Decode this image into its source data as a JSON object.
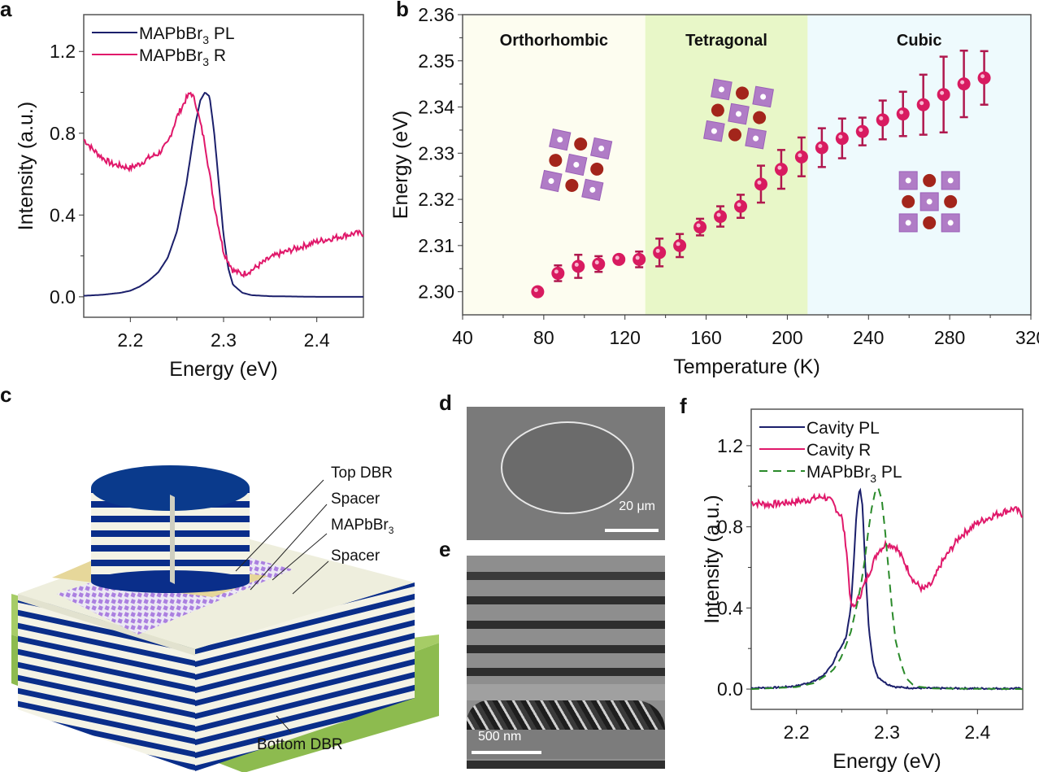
{
  "panels": {
    "a": {
      "label": "a"
    },
    "b": {
      "label": "b"
    },
    "c": {
      "label": "c"
    },
    "d": {
      "label": "d"
    },
    "e": {
      "label": "e"
    },
    "f": {
      "label": "f"
    }
  },
  "colors": {
    "navy": "#1b1f6b",
    "magenta": "#e0186a",
    "green_dash": "#2a8a2a",
    "ortho_bg": "#fdfdf0",
    "tetra_bg": "#e8f7c8",
    "cubic_bg": "#eefafd",
    "dbr_blue": "#0a2e8a",
    "point": "#d81b60"
  },
  "diagram_c": {
    "labels": [
      "Top DBR",
      "Spacer",
      "MAPbBr3",
      "Spacer",
      "Bottom DBR"
    ],
    "label_main": [
      "Top DBR",
      "Spacer",
      "MAPbBr",
      "Spacer",
      "Bottom DBR"
    ],
    "label_sub": [
      "",
      "",
      "3",
      "",
      ""
    ]
  },
  "image_d": {
    "scale_bar": "20 μm"
  },
  "image_e": {
    "scale_bar": "500 nm"
  },
  "chart_data": [
    {
      "id": "a",
      "type": "line",
      "title": "",
      "xlabel": "Energy (eV)",
      "ylabel": "Intensity (a.u.)",
      "xlim": [
        2.15,
        2.45
      ],
      "ylim": [
        -0.1,
        1.38
      ],
      "xticks": [
        2.2,
        2.3,
        2.4
      ],
      "xtick_labels": [
        "2.2",
        "2.3",
        "2.4"
      ],
      "yticks": [
        0.0,
        0.4,
        0.8,
        1.2
      ],
      "ytick_labels": [
        "0.0",
        "0.4",
        "0.8",
        "1.2"
      ],
      "legend": "top-left",
      "series": [
        {
          "name": "MAPbBr3 PL",
          "legend_main": "MAPbBr",
          "legend_sub": "3",
          "legend_tail": " PL",
          "style": "solid",
          "color": "#1b1f6b",
          "x": [
            2.15,
            2.17,
            2.19,
            2.2,
            2.21,
            2.22,
            2.23,
            2.24,
            2.25,
            2.26,
            2.265,
            2.27,
            2.275,
            2.28,
            2.285,
            2.29,
            2.295,
            2.3,
            2.305,
            2.31,
            2.32,
            2.33,
            2.35,
            2.4,
            2.45
          ],
          "y": [
            0.005,
            0.01,
            0.02,
            0.03,
            0.05,
            0.08,
            0.12,
            0.19,
            0.32,
            0.55,
            0.7,
            0.85,
            0.96,
            1.0,
            0.98,
            0.8,
            0.55,
            0.3,
            0.14,
            0.06,
            0.02,
            0.008,
            0.003,
            0.0,
            0.0
          ]
        },
        {
          "name": "MAPbBr3 R",
          "legend_main": "MAPbBr",
          "legend_sub": "3",
          "legend_tail": " R",
          "style": "solid",
          "color": "#e0186a",
          "x": [
            2.15,
            2.16,
            2.17,
            2.18,
            2.19,
            2.2,
            2.21,
            2.22,
            2.23,
            2.24,
            2.25,
            2.26,
            2.265,
            2.27,
            2.28,
            2.29,
            2.3,
            2.31,
            2.32,
            2.33,
            2.34,
            2.35,
            2.36,
            2.38,
            2.4,
            2.42,
            2.44,
            2.45
          ],
          "y": [
            0.77,
            0.72,
            0.68,
            0.65,
            0.64,
            0.63,
            0.65,
            0.68,
            0.7,
            0.75,
            0.88,
            0.97,
            1.0,
            0.95,
            0.75,
            0.45,
            0.22,
            0.13,
            0.11,
            0.13,
            0.16,
            0.19,
            0.21,
            0.24,
            0.27,
            0.29,
            0.31,
            0.31
          ]
        }
      ]
    },
    {
      "id": "b",
      "type": "scatter",
      "title": "",
      "xlabel": "Temperature (K)",
      "ylabel": "Energy (eV)",
      "xlim": [
        40,
        320
      ],
      "ylim": [
        2.295,
        2.36
      ],
      "xticks": [
        40,
        80,
        120,
        160,
        200,
        240,
        280,
        320
      ],
      "xtick_labels": [
        "40",
        "80",
        "120",
        "160",
        "200",
        "240",
        "280",
        "320"
      ],
      "yticks": [
        2.3,
        2.31,
        2.32,
        2.33,
        2.34,
        2.35,
        2.36
      ],
      "ytick_labels": [
        "2.30",
        "2.31",
        "2.32",
        "2.33",
        "2.34",
        "2.35",
        "2.36"
      ],
      "phases": [
        {
          "name": "Orthorhombic",
          "from": 40,
          "to": 130
        },
        {
          "name": "Tetragonal",
          "from": 130,
          "to": 210
        },
        {
          "name": "Cubic",
          "from": 210,
          "to": 320
        }
      ],
      "series": [
        {
          "name": "Energy",
          "x": [
            77,
            87,
            97,
            107,
            117,
            127,
            137,
            147,
            157,
            167,
            177,
            187,
            197,
            207,
            217,
            227,
            237,
            247,
            257,
            267,
            277,
            287,
            297
          ],
          "y": [
            2.3,
            2.304,
            2.3055,
            2.306,
            2.307,
            2.307,
            2.3085,
            2.31,
            2.314,
            2.3163,
            2.3185,
            2.3233,
            2.3265,
            2.3292,
            2.3312,
            2.3332,
            2.3347,
            2.3372,
            2.3385,
            2.3405,
            2.3427,
            2.345,
            2.3463
          ],
          "err": [
            0.0,
            0.0017,
            0.0025,
            0.0017,
            0.0008,
            0.0017,
            0.003,
            0.0025,
            0.0018,
            0.0022,
            0.0025,
            0.004,
            0.0042,
            0.0042,
            0.0042,
            0.0043,
            0.003,
            0.0042,
            0.0048,
            0.0065,
            0.0082,
            0.0072,
            0.0058
          ]
        }
      ]
    },
    {
      "id": "f",
      "type": "line",
      "title": "",
      "xlabel": "Energy (eV)",
      "ylabel": "Intensity (a.u.)",
      "xlim": [
        2.15,
        2.45
      ],
      "ylim": [
        -0.1,
        1.38
      ],
      "xticks": [
        2.2,
        2.3,
        2.4
      ],
      "xtick_labels": [
        "2.2",
        "2.3",
        "2.4"
      ],
      "yticks": [
        0.0,
        0.4,
        0.8,
        1.2
      ],
      "ytick_labels": [
        "0.0",
        "0.4",
        "0.8",
        "1.2"
      ],
      "legend": "top-left",
      "series": [
        {
          "name": "Cavity PL",
          "legend_main": "Cavity PL",
          "legend_sub": "",
          "legend_tail": "",
          "style": "solid",
          "color": "#1b1f6b",
          "x": [
            2.15,
            2.18,
            2.2,
            2.22,
            2.23,
            2.24,
            2.245,
            2.25,
            2.255,
            2.26,
            2.263,
            2.266,
            2.27,
            2.273,
            2.276,
            2.28,
            2.285,
            2.29,
            2.3,
            2.31,
            2.33,
            2.4,
            2.45
          ],
          "y": [
            0.005,
            0.008,
            0.015,
            0.04,
            0.07,
            0.12,
            0.18,
            0.21,
            0.26,
            0.4,
            0.6,
            0.85,
            1.0,
            0.9,
            0.6,
            0.3,
            0.12,
            0.06,
            0.025,
            0.01,
            0.005,
            0.003,
            0.003
          ]
        },
        {
          "name": "Cavity R",
          "legend_main": "Cavity R",
          "legend_sub": "",
          "legend_tail": "",
          "style": "solid",
          "color": "#e0186a",
          "x": [
            2.15,
            2.17,
            2.19,
            2.21,
            2.23,
            2.24,
            2.245,
            2.25,
            2.255,
            2.26,
            2.263,
            2.27,
            2.28,
            2.29,
            2.3,
            2.31,
            2.32,
            2.33,
            2.34,
            2.35,
            2.36,
            2.38,
            2.4,
            2.42,
            2.44,
            2.45
          ],
          "y": [
            0.92,
            0.91,
            0.92,
            0.93,
            0.95,
            0.92,
            0.88,
            0.85,
            0.7,
            0.42,
            0.4,
            0.46,
            0.57,
            0.68,
            0.72,
            0.7,
            0.62,
            0.53,
            0.49,
            0.52,
            0.62,
            0.75,
            0.82,
            0.86,
            0.89,
            0.86
          ]
        },
        {
          "name": "MAPbBr3 PL",
          "legend_main": "MAPbBr",
          "legend_sub": "3",
          "legend_tail": " PL",
          "style": "dashed",
          "color": "#2a8a2a",
          "x": [
            2.15,
            2.2,
            2.22,
            2.24,
            2.25,
            2.26,
            2.27,
            2.275,
            2.28,
            2.285,
            2.29,
            2.295,
            2.3,
            2.305,
            2.31,
            2.32,
            2.33,
            2.35,
            2.45
          ],
          "y": [
            0.0,
            0.01,
            0.03,
            0.09,
            0.16,
            0.28,
            0.48,
            0.62,
            0.8,
            0.95,
            1.0,
            0.92,
            0.68,
            0.42,
            0.22,
            0.06,
            0.015,
            0.003,
            0.0
          ]
        }
      ]
    }
  ]
}
